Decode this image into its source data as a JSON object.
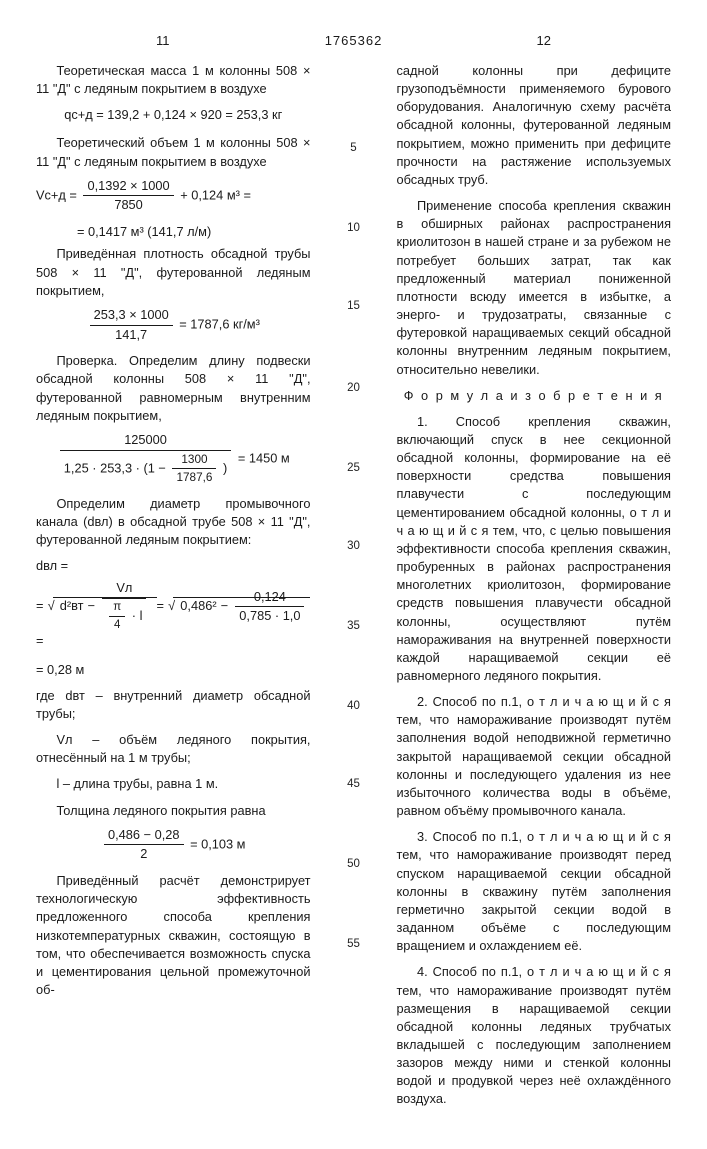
{
  "doc_number": "1765362",
  "page_left": "11",
  "page_right": "12",
  "gutter": {
    "g5": "5",
    "g10": "10",
    "g15": "15",
    "g20": "20",
    "g25": "25",
    "g30": "30",
    "g35": "35",
    "g40": "40",
    "g45": "45",
    "g50": "50",
    "g55": "55"
  },
  "colA": {
    "p1": "Теоретическая масса 1 м колонны 508 × 11 \"Д\" с ледяным покрытием в воздухе",
    "eq1": "qс+д = 139,2 + 0,124 × 920 = 253,3 кг",
    "p2": "Теоретический объем 1 м колонны 508 × 11 \"Д\" с ледяным покрытием в воздухе",
    "eq2_lhs": "Vс+д =",
    "eq2_num": "0,1392 × 1000",
    "eq2_den": "7850",
    "eq2_tail": "+ 0,124 м³ =",
    "eq2_res": "= 0,1417 м³ (141,7 л/м)",
    "p3": "Приведённая плотность обсадной трубы 508 × 11 \"Д\", футерованной ледяным покрытием,",
    "eq3_num": "253,3 × 1000",
    "eq3_den": "141,7",
    "eq3_tail": "= 1787,6 кг/м³",
    "p4": "Проверка. Определим длину подвески обсадной колонны 508 × 11 \"Д\", футерованной равномерным внутренним ледяным покрытием,",
    "eq4_num": "125000",
    "eq4_den_a": "1,25 · 253,3 · (1 −",
    "eq4_den_num": "1300",
    "eq4_den_den": "1787,6",
    "eq4_den_b": ")",
    "eq4_tail": "= 1450 м",
    "p5": "Определим диаметр промывочного канала (dвл) в обсадной трубе 508 × 11 \"Д\", футерованной ледяным покрытием:",
    "eq5_lhs": "dвл =",
    "eq5_a": "d²вт −",
    "eq5_b_num": "Vл",
    "eq5_b_den_pi": "π",
    "eq5_b_den_4": "4",
    "eq5_b_den_l": "· l",
    "eq5_mid": "=",
    "eq5_c": "0,486² −",
    "eq5_c_num": "0,124",
    "eq5_c_den": "0,785 · 1,0",
    "eq5_res": "= 0,28 м",
    "p6a": "где dвт – внутренний диаметр обсадной трубы;",
    "p6b": "Vл – объём ледяного покрытия, отнесённый на 1 м трубы;",
    "p6c": "l – длина трубы, равна 1 м.",
    "p6d": "Толщина ледяного покрытия равна",
    "eq6_num": "0,486 − 0,28",
    "eq6_den": "2",
    "eq6_tail": "= 0,103 м",
    "p7": "Приведённый расчёт демонстрирует технологическую эффективность предложенного способа крепления низкотемпературных скважин, состоящую в том, что обеспечивается возможность спуска и цементирования цельной промежуточной об-"
  },
  "colB": {
    "p1": "садной колонны при дефиците грузоподъёмности применяемого бурового оборудования. Аналогичную схему расчёта обсадной колонны, футерованной ледяным покрытием, можно применить при дефиците прочности на растяжение используемых обсадных труб.",
    "p2": "Применение способа крепления скважин в обширных районах распространения криолитозон в нашей стране и за рубежом не потребует больших затрат, так как предложенный материал пониженной плотности всюду имеется в избытке, а энерго- и трудозатраты, связанные с футеровкой наращиваемых секций обсадной колонны внутренним ледяным покрытием, относительно невелики.",
    "formula_title": "Ф о р м у л а   и з о б р е т е н и я",
    "c1": "1. Способ крепления скважин, включающий спуск в нее секционной обсадной колонны, формирование на её поверхности средства повышения плавучести с последующим цементированием обсадной колонны, о т л и ч а ю щ и й с я  тем, что, с целью повышения эффективности способа крепления скважин, пробуренных в районах распространения многолетних криолитозон, формирование средств повышения плавучести обсадной колонны, осуществляют путём намораживания на внутренней поверхности каждой наращиваемой секции её равномерного ледяного покрытия.",
    "c2": "2. Способ по п.1, о т л и ч а ю щ и й с я тем, что намораживание производят путём заполнения водой неподвижной герметично закрытой наращиваемой секции обсадной колонны и последующего удаления из нее избыточного количества воды в объёме, равном объёму промывочного канала.",
    "c3": "3. Способ по п.1, о т л и ч а ю щ и й с я тем, что намораживание производят перед спуском наращиваемой секции обсадной колонны в скважину путём заполнения герметично закрытой секции водой в заданном объёме с последующим вращением и охлаждением её.",
    "c4": "4. Способ по п.1, о т л и ч а ю щ и й с я тем, что намораживание производят путём размещения в наращиваемой секции обсадной колонны ледяных трубчатых вкладышей с последующим заполнением зазоров между ними и стенкой колонны водой и продувкой через неё охлаждённого воздуха."
  }
}
